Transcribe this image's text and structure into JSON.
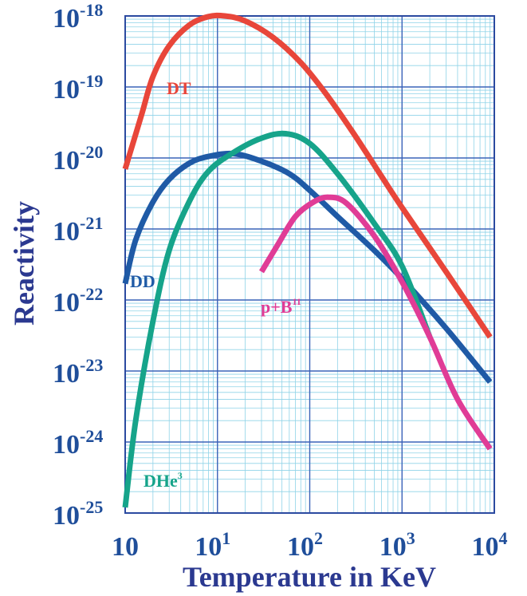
{
  "chart_data": {
    "type": "line",
    "xlabel": "Temperature in KeV",
    "ylabel": "Reactivity",
    "x_scale": "log",
    "y_scale": "log",
    "xlim": [
      1,
      10000
    ],
    "ylim": [
      1e-25,
      1e-18
    ],
    "grid": true,
    "x_ticks": [
      {
        "base": "10",
        "exp": ""
      },
      {
        "base": "10",
        "exp": "1"
      },
      {
        "base": "10",
        "exp": "2"
      },
      {
        "base": "10",
        "exp": "3"
      },
      {
        "base": "10",
        "exp": "4"
      }
    ],
    "y_ticks": [
      {
        "base": "10",
        "exp": "-18"
      },
      {
        "base": "10",
        "exp": "-19"
      },
      {
        "base": "10",
        "exp": "-20"
      },
      {
        "base": "10",
        "exp": "-21"
      },
      {
        "base": "10",
        "exp": "-22"
      },
      {
        "base": "10",
        "exp": "-23"
      },
      {
        "base": "10",
        "exp": "-24"
      },
      {
        "base": "10",
        "exp": "-25"
      }
    ],
    "series": [
      {
        "name": "DT",
        "label_base": "DT",
        "label_sup": "",
        "color": "#e8463a",
        "points": [
          [
            1,
            7e-21
          ],
          [
            1.5,
            4e-20
          ],
          [
            2,
            1.4e-19
          ],
          [
            3,
            3.8e-19
          ],
          [
            5,
            7.5e-19
          ],
          [
            8,
            9.8e-19
          ],
          [
            12,
            1e-18
          ],
          [
            20,
            8.5e-19
          ],
          [
            40,
            5e-19
          ],
          [
            80,
            2.2e-19
          ],
          [
            150,
            8e-20
          ],
          [
            300,
            2.2e-20
          ],
          [
            600,
            5.5e-21
          ],
          [
            1000,
            2e-21
          ],
          [
            3000,
            2.5e-22
          ],
          [
            9000,
            3e-23
          ]
        ]
      },
      {
        "name": "DD",
        "label_base": "DD",
        "label_sup": "",
        "color": "#1f5aa6",
        "points": [
          [
            1,
            1.7e-22
          ],
          [
            1.3,
            7e-22
          ],
          [
            2,
            2.4e-21
          ],
          [
            3,
            5e-21
          ],
          [
            5,
            8.5e-21
          ],
          [
            8,
            1.05e-20
          ],
          [
            15,
            1.15e-20
          ],
          [
            30,
            9e-21
          ],
          [
            60,
            6e-21
          ],
          [
            100,
            3.5e-21
          ],
          [
            200,
            1.5e-21
          ],
          [
            500,
            5e-22
          ],
          [
            1000,
            2e-22
          ],
          [
            3000,
            4e-23
          ],
          [
            9000,
            7e-24
          ]
        ]
      },
      {
        "name": "DHe3",
        "label_base": "DHe",
        "label_sup": "3",
        "color": "#16a48a",
        "points": [
          [
            1,
            1.2e-25
          ],
          [
            1.3,
            2e-24
          ],
          [
            2,
            5e-23
          ],
          [
            3,
            5e-22
          ],
          [
            5,
            2.5e-21
          ],
          [
            8,
            6.5e-21
          ],
          [
            15,
            1.2e-20
          ],
          [
            30,
            1.9e-20
          ],
          [
            55,
            2.2e-20
          ],
          [
            100,
            1.6e-20
          ],
          [
            200,
            6e-21
          ],
          [
            500,
            1.2e-21
          ],
          [
            1000,
            3e-22
          ],
          [
            2000,
            3e-23
          ]
        ]
      },
      {
        "name": "p+B11",
        "label_base": "p+B",
        "label_sup": "11",
        "color": "#e03c96",
        "points": [
          [
            30,
            2.5e-22
          ],
          [
            45,
            6e-22
          ],
          [
            70,
            1.5e-21
          ],
          [
            110,
            2.4e-21
          ],
          [
            160,
            2.8e-21
          ],
          [
            250,
            2.3e-21
          ],
          [
            500,
            8e-22
          ],
          [
            1000,
            1.8e-22
          ],
          [
            2000,
            3e-23
          ],
          [
            4000,
            4e-24
          ],
          [
            9000,
            8e-25
          ]
        ]
      }
    ]
  }
}
